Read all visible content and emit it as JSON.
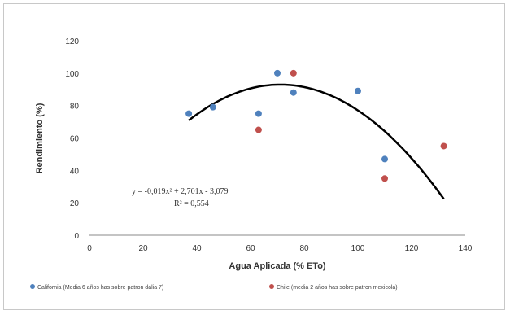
{
  "chart_data": {
    "type": "scatter",
    "xlabel": "Agua Aplicada (% ETo)",
    "ylabel": "Rendimiento (%)",
    "xlim": [
      0,
      140
    ],
    "ylim": [
      0,
      120
    ],
    "x_ticks": [
      0,
      20,
      40,
      60,
      80,
      100,
      120,
      140
    ],
    "y_ticks": [
      0,
      20,
      40,
      60,
      80,
      100,
      120
    ],
    "grid": false,
    "legend_position": "bottom",
    "series": [
      {
        "name": "California (Media 6 años has sobre patron dalia 7)",
        "color": "#4f81bd",
        "x": [
          37,
          46,
          63,
          70,
          76,
          100,
          110
        ],
        "y": [
          75,
          79,
          75,
          100,
          88,
          89,
          47
        ]
      },
      {
        "name": "Chile (media 2 años has sobre patron mexicola)",
        "color": "#c0504d",
        "x": [
          63,
          76,
          110,
          132
        ],
        "y": [
          65,
          100,
          35,
          55
        ]
      }
    ],
    "trendline": {
      "type": "polynomial",
      "coefficients": [
        -0.019,
        2.701,
        -3.079
      ],
      "x_range": [
        37,
        132
      ],
      "color": "#000000"
    },
    "annotations": {
      "equation": "y = -0,019x² + 2,701x - 3,079",
      "r_squared": "R² = 0,554"
    }
  }
}
